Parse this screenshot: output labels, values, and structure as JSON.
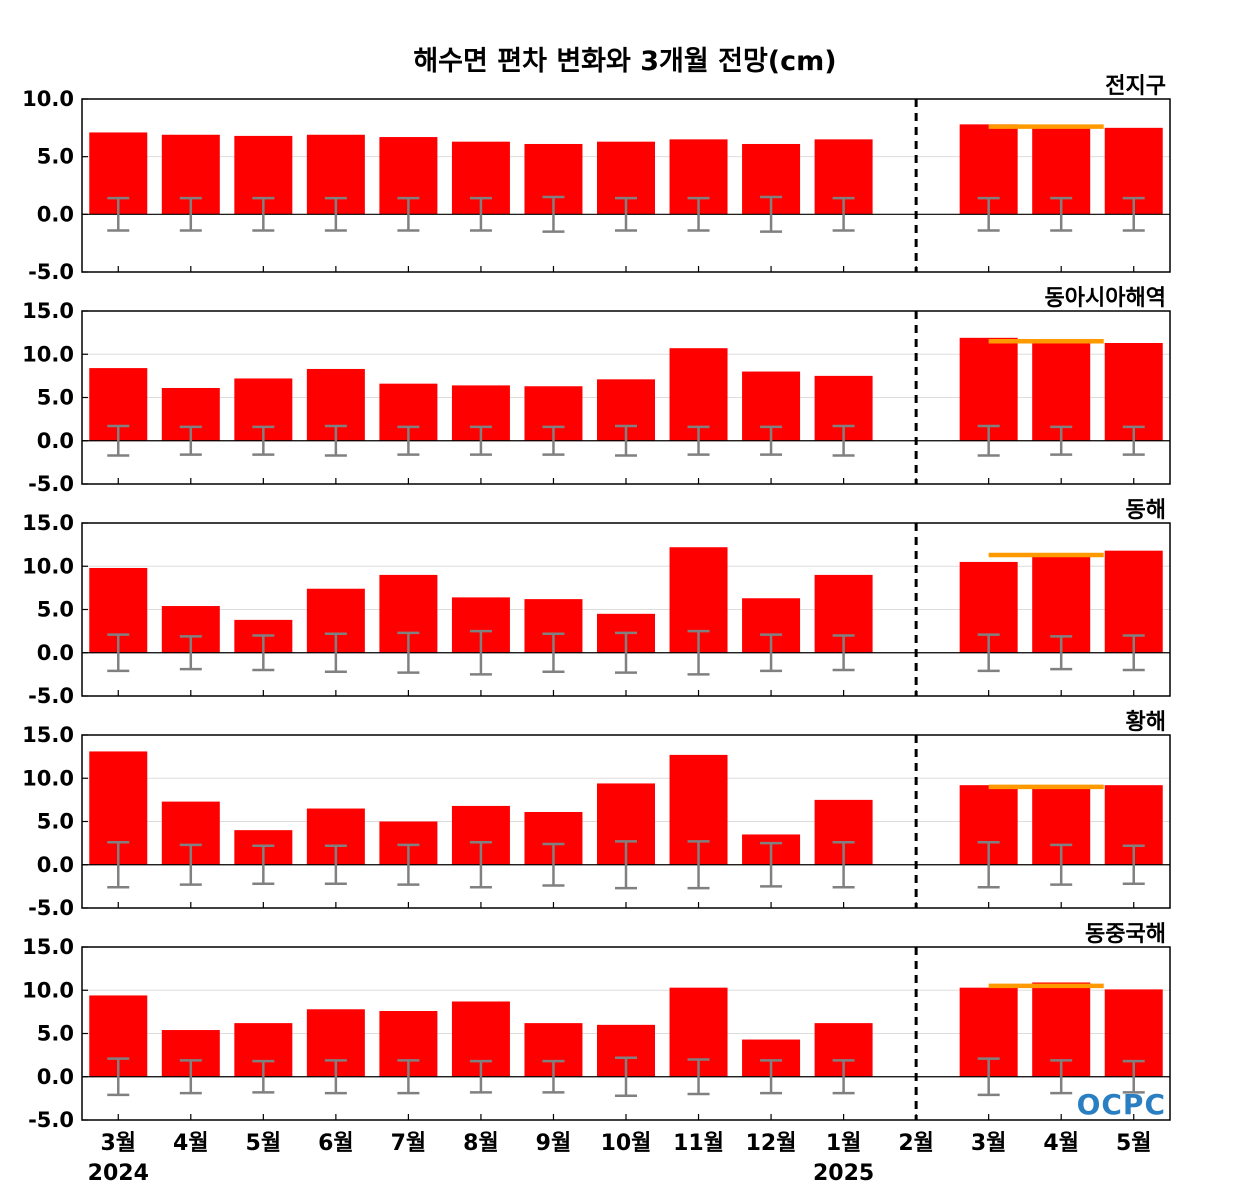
{
  "chart_data": {
    "type": "bar",
    "title": "해수면 편차 변화와 3개월 전망(cm)",
    "categories": [
      "3월",
      "4월",
      "5월",
      "6월",
      "7월",
      "8월",
      "9월",
      "10월",
      "11월",
      "12월",
      "1월",
      "2월",
      "3월",
      "4월",
      "5월"
    ],
    "years": [
      {
        "label": "2024",
        "category_index": 0
      },
      {
        "label": "2025",
        "category_index": 10
      }
    ],
    "forecast_divider_category_index": 11,
    "colors": {
      "bar": "#ff0000",
      "error_bar": "#808080",
      "forecast_line": "#ff9900",
      "divider": "#000000"
    },
    "logo": "OCPC",
    "panels": [
      {
        "name": "전지구",
        "ylim": [
          -5,
          10
        ],
        "yticks": [
          "10.0",
          "5.0",
          "0.0",
          "-5.0"
        ],
        "ytick_values": [
          10,
          5,
          0,
          -5
        ],
        "values": [
          7.1,
          6.9,
          6.8,
          6.9,
          6.7,
          6.3,
          6.1,
          6.3,
          6.5,
          6.1,
          6.5,
          null,
          7.8,
          7.6,
          7.5
        ],
        "error": [
          1.4,
          1.4,
          1.4,
          1.4,
          1.4,
          1.4,
          1.5,
          1.4,
          1.4,
          1.5,
          1.4,
          null,
          1.4,
          1.4,
          1.4
        ],
        "forecast_level": 7.6
      },
      {
        "name": "동아시아해역",
        "ylim": [
          -5,
          15
        ],
        "yticks": [
          "15.0",
          "10.0",
          "5.0",
          "0.0",
          "-5.0"
        ],
        "ytick_values": [
          15,
          10,
          5,
          0,
          -5
        ],
        "values": [
          8.4,
          6.1,
          7.2,
          8.3,
          6.6,
          6.4,
          6.3,
          7.1,
          10.7,
          8.0,
          7.5,
          null,
          11.9,
          11.4,
          11.3
        ],
        "error": [
          1.7,
          1.6,
          1.6,
          1.7,
          1.6,
          1.6,
          1.6,
          1.7,
          1.6,
          1.6,
          1.7,
          null,
          1.7,
          1.6,
          1.6
        ],
        "forecast_level": 11.5
      },
      {
        "name": "동해",
        "ylim": [
          -5,
          15
        ],
        "yticks": [
          "15.0",
          "10.0",
          "5.0",
          "0.0",
          "-5.0"
        ],
        "ytick_values": [
          15,
          10,
          5,
          0,
          -5
        ],
        "values": [
          9.8,
          5.4,
          3.8,
          7.4,
          9.0,
          6.4,
          6.2,
          4.5,
          12.2,
          6.3,
          9.0,
          null,
          10.5,
          11.2,
          11.8
        ],
        "error": [
          2.1,
          1.9,
          2.0,
          2.2,
          2.3,
          2.5,
          2.2,
          2.3,
          2.5,
          2.1,
          2.0,
          null,
          2.1,
          1.9,
          2.0
        ],
        "forecast_level": 11.3
      },
      {
        "name": "황해",
        "ylim": [
          -5,
          15
        ],
        "yticks": [
          "15.0",
          "10.0",
          "5.0",
          "0.0",
          "-5.0"
        ],
        "ytick_values": [
          15,
          10,
          5,
          0,
          -5
        ],
        "values": [
          13.1,
          7.3,
          4.0,
          6.5,
          5.0,
          6.8,
          6.1,
          9.4,
          12.7,
          3.5,
          7.5,
          null,
          9.2,
          9.2,
          9.2
        ],
        "error": [
          2.6,
          2.3,
          2.2,
          2.2,
          2.3,
          2.6,
          2.4,
          2.7,
          2.7,
          2.5,
          2.6,
          null,
          2.6,
          2.3,
          2.2
        ],
        "forecast_level": 9.0
      },
      {
        "name": "동중국해",
        "ylim": [
          -5,
          15
        ],
        "yticks": [
          "15.0",
          "10.0",
          "5.0",
          "0.0",
          "-5.0"
        ],
        "ytick_values": [
          15,
          10,
          5,
          0,
          -5
        ],
        "values": [
          9.4,
          5.4,
          6.2,
          7.8,
          7.6,
          8.7,
          6.2,
          6.0,
          10.3,
          4.3,
          6.2,
          null,
          10.3,
          10.9,
          10.1
        ],
        "error": [
          2.1,
          1.9,
          1.8,
          1.9,
          1.9,
          1.8,
          1.8,
          2.2,
          2.0,
          1.9,
          1.9,
          null,
          2.1,
          1.9,
          1.8
        ],
        "forecast_level": 10.5
      }
    ]
  }
}
